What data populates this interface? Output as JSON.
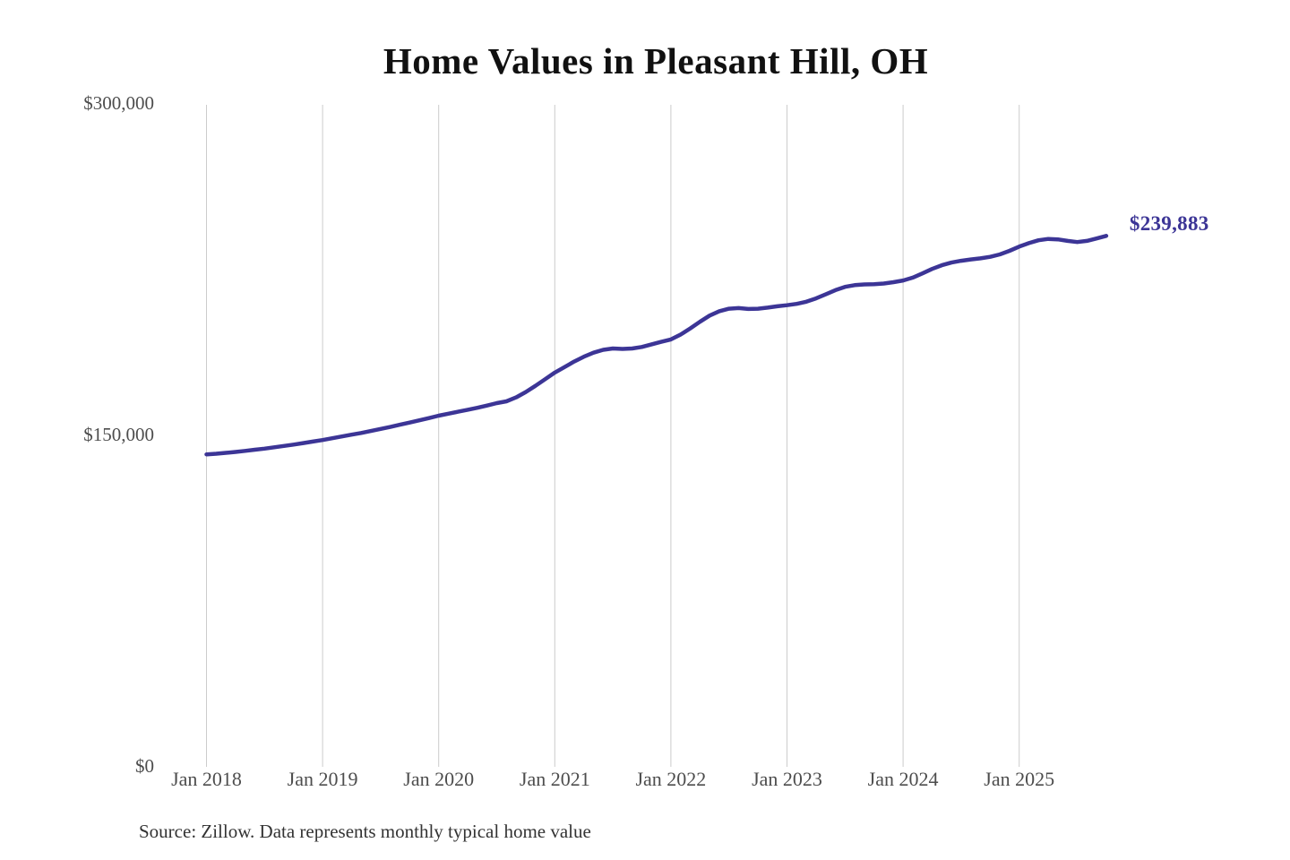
{
  "chart": {
    "title": "Home Values in Pleasant Hill, OH",
    "end_label": "$239,883",
    "source_note": "Source: Zillow. Data represents monthly typical home value"
  },
  "chart_data": {
    "type": "line",
    "title": "Home Values in Pleasant Hill, OH",
    "series_name": "Monthly typical home value",
    "unit": "USD",
    "x_start": "2018-01",
    "x_end": "2025-10",
    "x_tick_labels": [
      "Jan 2018",
      "Jan 2019",
      "Jan 2020",
      "Jan 2021",
      "Jan 2022",
      "Jan 2023",
      "Jan 2024",
      "Jan 2025"
    ],
    "y_ticks": [
      {
        "value": 0,
        "label": "$0"
      },
      {
        "value": 150000,
        "label": "$150,000"
      },
      {
        "value": 300000,
        "label": "$300,000"
      }
    ],
    "ylim": [
      0,
      300000
    ],
    "grid": "vertical-only",
    "legend": "none",
    "line_color": "#3c3596",
    "grid_color": "#cccccc",
    "latest_value": 239883,
    "values": [
      141000,
      141300,
      141700,
      142100,
      142600,
      143100,
      143600,
      144200,
      144800,
      145400,
      146100,
      146800,
      147500,
      148300,
      149100,
      149900,
      150700,
      151600,
      152500,
      153400,
      154400,
      155400,
      156400,
      157400,
      158500,
      159400,
      160300,
      161200,
      162100,
      163100,
      164200,
      165000,
      166800,
      169200,
      172000,
      175000,
      178000,
      180500,
      183000,
      185200,
      187000,
      188300,
      188900,
      188700,
      188900,
      189600,
      190800,
      191900,
      193000,
      195200,
      198000,
      201000,
      203800,
      205800,
      206900,
      207200,
      206800,
      206900,
      207400,
      208000,
      208500,
      209100,
      210100,
      211600,
      213400,
      215300,
      216800,
      217600,
      217900,
      218000,
      218300,
      218900,
      219700,
      221000,
      222900,
      224900,
      226600,
      227800,
      228600,
      229200,
      229700,
      230400,
      231500,
      233100,
      235000,
      236600,
      237900,
      238500,
      238300,
      237600,
      237100,
      237600,
      238700,
      239883
    ]
  }
}
